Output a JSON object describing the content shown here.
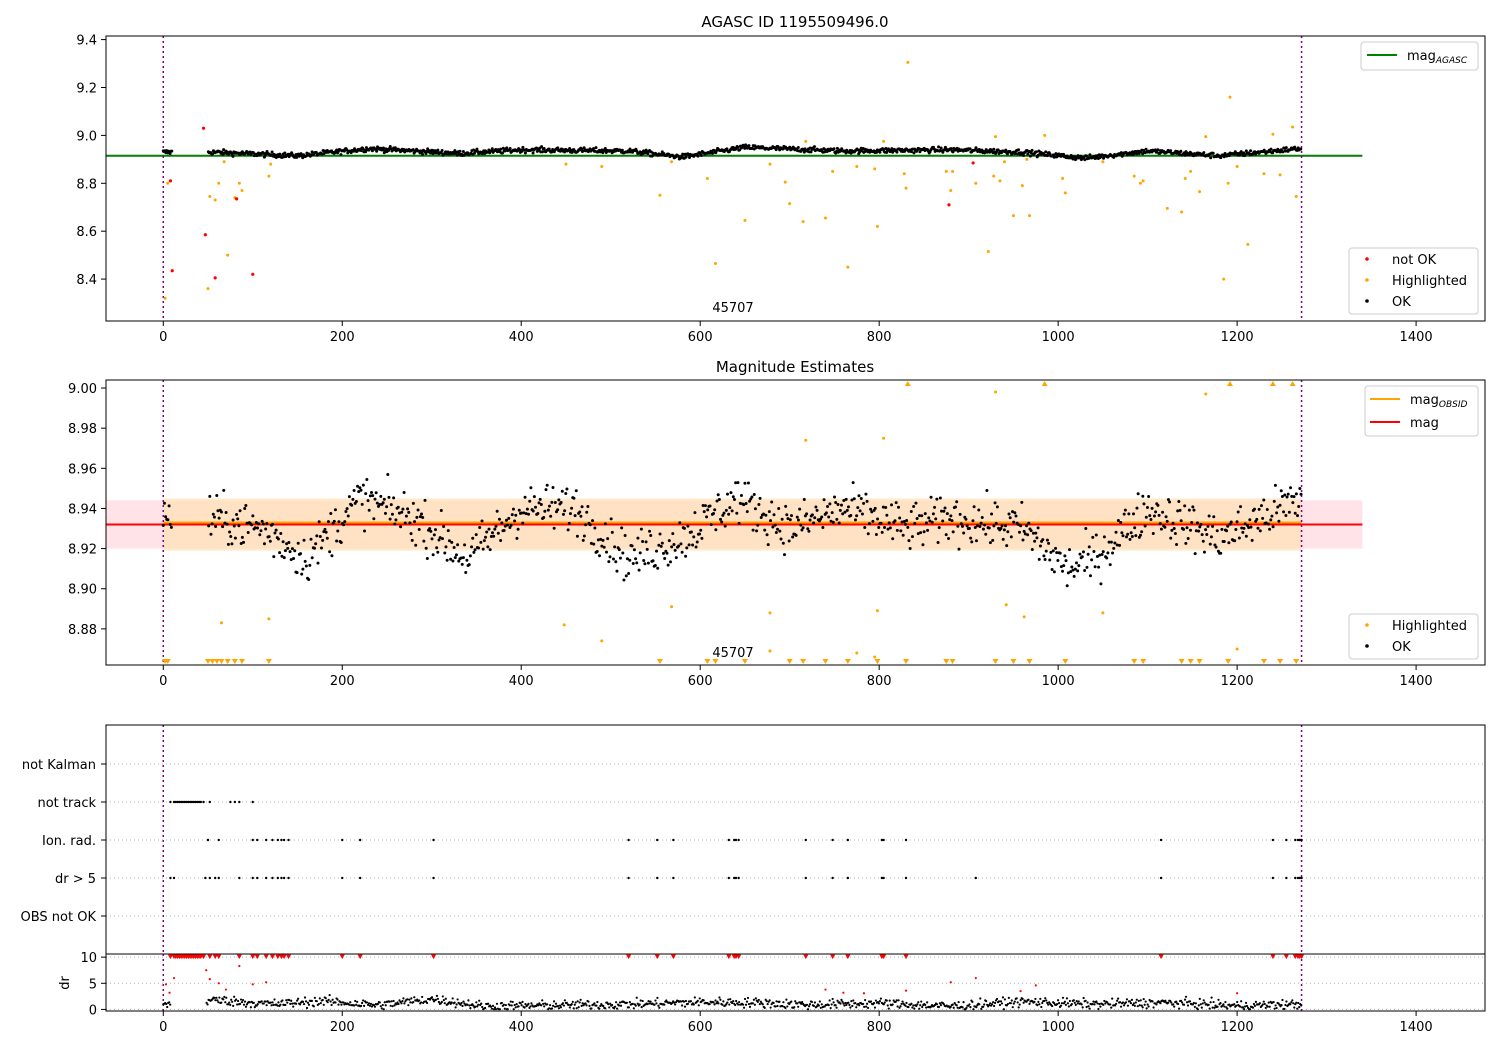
{
  "figure": {
    "panel1_title": "AGASC ID 1195509496.0",
    "panel2_title": "Magnitude Estimates",
    "obsid_marker": "45707"
  },
  "legend1": {
    "line_label": "mag",
    "line_sub": "AGASC",
    "notok_label": "not OK",
    "highlighted_label": "Highlighted",
    "ok_label": "OK"
  },
  "legend2": {
    "obsid_label": "mag",
    "obsid_sub": "OBSID",
    "mag_label": "mag",
    "highlighted_label": "Highlighted",
    "ok_label": "OK"
  },
  "colors": {
    "ok": "#000000",
    "highlighted": "#ffa500",
    "not_ok": "#ff0000",
    "agasc_line": "#008000",
    "mag_line": "#ff0000",
    "obsid_line": "#ffa500",
    "obs_span": "#800080",
    "band_mag": "#ffc0cb",
    "band_obsid": "#ffe0b0"
  },
  "chart_data": [
    {
      "type": "scatter",
      "title": "AGASC ID 1195509496.0",
      "xlim": [
        -64,
        1477
      ],
      "ylim": [
        8.225,
        9.415
      ],
      "xticks": [
        0,
        200,
        400,
        600,
        800,
        1000,
        1200,
        1400
      ],
      "yticks": [
        8.4,
        8.6,
        8.8,
        9.0,
        9.2,
        9.4
      ],
      "ytick_labels": [
        "8.4",
        "8.6",
        "8.8",
        "9.0",
        "9.2",
        "9.4"
      ],
      "mag_agasc": 8.915,
      "obs_bounds": [
        0,
        1272
      ],
      "ok_trend": [
        [
          55,
          8.93
        ],
        [
          150,
          8.915
        ],
        [
          230,
          8.945
        ],
        [
          330,
          8.925
        ],
        [
          400,
          8.94
        ],
        [
          520,
          8.935
        ],
        [
          580,
          8.91
        ],
        [
          650,
          8.95
        ],
        [
          760,
          8.935
        ],
        [
          880,
          8.94
        ],
        [
          960,
          8.93
        ],
        [
          1030,
          8.905
        ],
        [
          1100,
          8.935
        ],
        [
          1180,
          8.915
        ],
        [
          1270,
          8.945
        ]
      ],
      "ok_spread": 0.012,
      "highlighted_points": [
        [
          2,
          8.32
        ],
        [
          5,
          8.8
        ],
        [
          50,
          8.36
        ],
        [
          52,
          8.745
        ],
        [
          58,
          8.73
        ],
        [
          62,
          8.8
        ],
        [
          68,
          8.89
        ],
        [
          72,
          8.5
        ],
        [
          80,
          8.74
        ],
        [
          85,
          8.8
        ],
        [
          88,
          8.77
        ],
        [
          118,
          8.83
        ],
        [
          120,
          8.88
        ],
        [
          450,
          8.88
        ],
        [
          490,
          8.87
        ],
        [
          555,
          8.75
        ],
        [
          568,
          8.89
        ],
        [
          608,
          8.82
        ],
        [
          617,
          8.465
        ],
        [
          650,
          8.645
        ],
        [
          678,
          8.88
        ],
        [
          695,
          8.805
        ],
        [
          700,
          8.715
        ],
        [
          715,
          8.64
        ],
        [
          718,
          8.975
        ],
        [
          740,
          8.655
        ],
        [
          748,
          8.85
        ],
        [
          765,
          8.45
        ],
        [
          775,
          8.87
        ],
        [
          795,
          8.86
        ],
        [
          798,
          8.62
        ],
        [
          805,
          8.975
        ],
        [
          828,
          8.84
        ],
        [
          830,
          8.78
        ],
        [
          832,
          9.305
        ],
        [
          875,
          8.85
        ],
        [
          880,
          8.77
        ],
        [
          882,
          8.85
        ],
        [
          908,
          8.8
        ],
        [
          922,
          8.515
        ],
        [
          928,
          8.83
        ],
        [
          930,
          8.995
        ],
        [
          935,
          8.81
        ],
        [
          940,
          8.89
        ],
        [
          950,
          8.665
        ],
        [
          960,
          8.79
        ],
        [
          965,
          8.9
        ],
        [
          968,
          8.665
        ],
        [
          985,
          9.0
        ],
        [
          1005,
          8.82
        ],
        [
          1008,
          8.76
        ],
        [
          1050,
          8.89
        ],
        [
          1085,
          8.83
        ],
        [
          1092,
          8.8
        ],
        [
          1095,
          8.81
        ],
        [
          1122,
          8.695
        ],
        [
          1138,
          8.68
        ],
        [
          1142,
          8.82
        ],
        [
          1148,
          8.85
        ],
        [
          1158,
          8.765
        ],
        [
          1165,
          8.995
        ],
        [
          1185,
          8.4
        ],
        [
          1190,
          8.8
        ],
        [
          1192,
          9.16
        ],
        [
          1200,
          8.87
        ],
        [
          1212,
          8.545
        ],
        [
          1230,
          8.84
        ],
        [
          1240,
          9.005
        ],
        [
          1248,
          8.835
        ],
        [
          1262,
          9.035
        ],
        [
          1266,
          8.745
        ]
      ],
      "not_ok_points": [
        [
          8,
          8.81
        ],
        [
          10,
          8.435
        ],
        [
          45,
          9.03
        ],
        [
          47,
          8.585
        ],
        [
          58,
          8.405
        ],
        [
          82,
          8.735
        ],
        [
          100,
          8.42
        ],
        [
          905,
          8.885
        ],
        [
          878,
          8.71
        ]
      ]
    },
    {
      "type": "scatter",
      "title": "Magnitude Estimates",
      "xlim": [
        -64,
        1477
      ],
      "ylim": [
        8.862,
        9.004
      ],
      "xticks": [
        0,
        200,
        400,
        600,
        800,
        1000,
        1200,
        1400
      ],
      "yticks": [
        8.88,
        8.9,
        8.92,
        8.94,
        8.96,
        8.98,
        9.0
      ],
      "ytick_labels": [
        "8.88",
        "8.90",
        "8.92",
        "8.94",
        "8.96",
        "8.98",
        "9.00"
      ],
      "mag": 8.932,
      "mag_band": [
        8.92,
        8.944
      ],
      "mag_obsid": 8.933,
      "mag_obsid_band": [
        8.919,
        8.945
      ],
      "obs_bounds": [
        0,
        1272
      ],
      "ok_trend": [
        [
          55,
          8.935
        ],
        [
          110,
          8.93
        ],
        [
          160,
          8.915
        ],
        [
          220,
          8.945
        ],
        [
          280,
          8.935
        ],
        [
          340,
          8.915
        ],
        [
          400,
          8.94
        ],
        [
          460,
          8.94
        ],
        [
          520,
          8.915
        ],
        [
          580,
          8.925
        ],
        [
          640,
          8.945
        ],
        [
          700,
          8.93
        ],
        [
          760,
          8.94
        ],
        [
          830,
          8.93
        ],
        [
          880,
          8.935
        ],
        [
          960,
          8.93
        ],
        [
          1010,
          8.91
        ],
        [
          1040,
          8.915
        ],
        [
          1100,
          8.94
        ],
        [
          1180,
          8.925
        ],
        [
          1272,
          8.945
        ]
      ],
      "ok_spread": 0.013,
      "highlighted_points": [
        [
          65,
          8.883
        ],
        [
          118,
          8.885
        ],
        [
          448,
          8.882
        ],
        [
          490,
          8.874
        ],
        [
          568,
          8.891
        ],
        [
          678,
          8.888
        ],
        [
          718,
          8.974
        ],
        [
          798,
          8.889
        ],
        [
          805,
          8.975
        ],
        [
          930,
          8.998
        ],
        [
          942,
          8.892
        ],
        [
          962,
          8.886
        ],
        [
          1050,
          8.888
        ],
        [
          1165,
          8.997
        ],
        [
          1200,
          8.87
        ],
        [
          678,
          8.869
        ],
        [
          775,
          8.868
        ],
        [
          795,
          8.866
        ]
      ],
      "clipped_low_x": [
        2,
        5,
        50,
        55,
        60,
        65,
        72,
        80,
        88,
        118,
        555,
        608,
        617,
        650,
        700,
        715,
        740,
        765,
        798,
        830,
        875,
        882,
        930,
        950,
        968,
        1008,
        1085,
        1095,
        1138,
        1148,
        1158,
        1190,
        1230,
        1248,
        1266
      ],
      "clipped_high_x": [
        832,
        985,
        1192,
        1240,
        1262
      ]
    },
    {
      "type": "scatter",
      "categories": [
        "not Kalman",
        "not track",
        "Ion. rad.",
        "dr > 5",
        "OBS not OK"
      ],
      "xlim": [
        -64,
        1477
      ],
      "xticks": [
        0,
        200,
        400,
        600,
        800,
        1000,
        1200,
        1400
      ],
      "flags": {
        "not track": [
          8,
          12,
          14,
          16,
          18,
          20,
          22,
          24,
          26,
          28,
          30,
          32,
          34,
          36,
          38,
          40,
          42,
          45,
          52,
          75,
          80,
          85,
          100
        ],
        "Ion. rad.": [
          50,
          62,
          100,
          105,
          115,
          122,
          128,
          132,
          135,
          140,
          200,
          220,
          302,
          520,
          552,
          570,
          632,
          638,
          640,
          643,
          718,
          748,
          765,
          803,
          805,
          830,
          1115,
          1240,
          1255,
          1265,
          1268,
          1270,
          1272
        ],
        "dr > 5": [
          8,
          12,
          47,
          52,
          58,
          62,
          85,
          100,
          105,
          115,
          122,
          128,
          132,
          135,
          140,
          200,
          220,
          302,
          520,
          552,
          570,
          632,
          638,
          640,
          643,
          718,
          748,
          765,
          803,
          805,
          830,
          908,
          1115,
          1240,
          1255,
          1265,
          1268,
          1270,
          1272
        ],
        "OBS not OK": []
      }
    },
    {
      "type": "scatter",
      "ylabel": "dr",
      "xlim": [
        -64,
        1477
      ],
      "ylim": [
        -0.3,
        10.6
      ],
      "yticks": [
        0,
        5,
        10
      ],
      "xticks": [
        0,
        200,
        400,
        600,
        800,
        1000,
        1200,
        1400
      ],
      "ok_trend": [
        [
          0,
          1.0
        ],
        [
          60,
          1.8
        ],
        [
          120,
          1.0
        ],
        [
          180,
          1.6
        ],
        [
          240,
          0.8
        ],
        [
          300,
          2.0
        ],
        [
          360,
          0.6
        ],
        [
          440,
          0.8
        ],
        [
          520,
          1.0
        ],
        [
          600,
          1.4
        ],
        [
          660,
          1.3
        ],
        [
          720,
          0.9
        ],
        [
          800,
          1.2
        ],
        [
          880,
          0.6
        ],
        [
          960,
          1.5
        ],
        [
          1040,
          1.0
        ],
        [
          1120,
          1.3
        ],
        [
          1200,
          0.7
        ],
        [
          1272,
          1.0
        ]
      ],
      "ok_spread": 0.45,
      "red_points": [
        [
          3,
          4.8
        ],
        [
          7,
          3.2
        ],
        [
          12,
          6.0
        ],
        [
          48,
          7.5
        ],
        [
          52,
          5.8
        ],
        [
          62,
          5.0
        ],
        [
          70,
          3.8
        ],
        [
          85,
          8.3
        ],
        [
          100,
          4.8
        ],
        [
          115,
          5.2
        ],
        [
          740,
          3.8
        ],
        [
          760,
          3.2
        ],
        [
          783,
          3.1
        ],
        [
          830,
          3.6
        ],
        [
          880,
          5.2
        ],
        [
          908,
          6.0
        ],
        [
          958,
          3.5
        ],
        [
          975,
          4.6
        ],
        [
          1200,
          3.1
        ]
      ],
      "capped_x": [
        8,
        12,
        14,
        16,
        18,
        20,
        22,
        24,
        26,
        28,
        30,
        32,
        34,
        36,
        38,
        40,
        42,
        45,
        52,
        58,
        62,
        85,
        100,
        105,
        115,
        122,
        128,
        132,
        135,
        140,
        200,
        220,
        302,
        520,
        552,
        570,
        632,
        638,
        640,
        643,
        718,
        748,
        765,
        803,
        805,
        830,
        1115,
        1240,
        1255,
        1265,
        1268,
        1270,
        1272
      ]
    }
  ]
}
